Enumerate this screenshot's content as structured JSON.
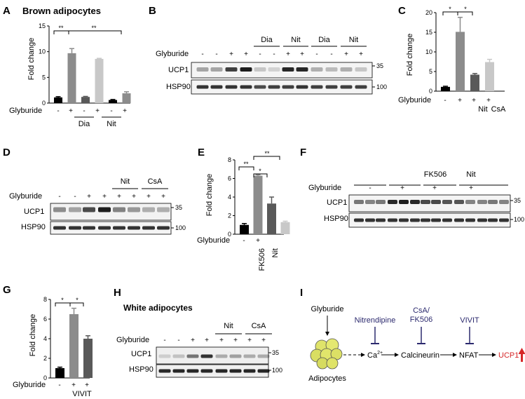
{
  "panels": {
    "A": {
      "letter": "A",
      "title": "Brown adipocytes",
      "ylabel": "Fold change",
      "yticks": [
        "0",
        "5",
        "10",
        "15"
      ],
      "row_label": "Glyburide",
      "signs": [
        "-",
        "+",
        "-",
        "+",
        "-",
        "+"
      ],
      "groups": [
        {
          "label": "Dia"
        },
        {
          "label": "Nit"
        }
      ],
      "sig": [
        "**",
        "**"
      ]
    },
    "B": {
      "letter": "B",
      "row_label": "Glyburide",
      "signs": [
        "-",
        "-",
        "+",
        "+",
        "-",
        "-",
        "+",
        "+",
        "-",
        "-",
        "+",
        "+"
      ],
      "groups": [
        "Dia",
        "Nit",
        "Dia",
        "Nit"
      ],
      "blots": [
        "UCP1",
        "HSP90"
      ],
      "mw": [
        "35",
        "100"
      ]
    },
    "C": {
      "letter": "C",
      "ylabel": "Fold change",
      "yticks": [
        "0",
        "5",
        "10",
        "15",
        "20"
      ],
      "row_label": "Glyburide",
      "signs": [
        "-",
        "+",
        "+",
        "+"
      ],
      "xlabels": [
        "Nit",
        "CsA"
      ],
      "sig": [
        "*",
        "*"
      ]
    },
    "D": {
      "letter": "D",
      "row_label": "Glyburide",
      "signs": [
        "-",
        "-",
        "+",
        "+",
        "+",
        "+",
        "+",
        "+"
      ],
      "groups": [
        "Nit",
        "CsA"
      ],
      "blots": [
        "UCP1",
        "HSP90"
      ],
      "mw": [
        "35",
        "100"
      ]
    },
    "E": {
      "letter": "E",
      "ylabel": "Fold change",
      "yticks": [
        "0",
        "2",
        "4",
        "6",
        "8"
      ],
      "row_label": "Glyburide",
      "signs": [
        "-",
        "+"
      ],
      "xlabels": [
        "FK506",
        "Nit"
      ],
      "sig": [
        "**",
        "*",
        "**"
      ]
    },
    "F": {
      "letter": "F",
      "row_label": "Glyburide",
      "signs": [
        "-",
        "+",
        "+",
        "+"
      ],
      "groups": [
        "FK506",
        "Nit"
      ],
      "blots": [
        "UCP1",
        "HSP90"
      ],
      "mw": [
        "35",
        "100"
      ]
    },
    "G": {
      "letter": "G",
      "ylabel": "Fold change",
      "yticks": [
        "0",
        "2",
        "4",
        "6",
        "8"
      ],
      "row_label": "Glyburide",
      "signs": [
        "-",
        "+",
        "+"
      ],
      "xlabels": [
        "VIVIT"
      ],
      "sig": [
        "*",
        "*"
      ]
    },
    "H": {
      "letter": "H",
      "title": "White adipocytes",
      "row_label": "Glyburide",
      "signs": [
        "-",
        "-",
        "+",
        "+",
        "+",
        "+",
        "+",
        "+"
      ],
      "groups": [
        "Nit",
        "CsA"
      ],
      "blots": [
        "UCP1",
        "HSP90"
      ],
      "mw": [
        "35",
        "100"
      ]
    },
    "I": {
      "letter": "I",
      "glyburide": "Glyburide",
      "adipocytes": "Adipocytes",
      "inhib1": "Nitrendipine",
      "inhib2a": "CsA/",
      "inhib2b": "FK506",
      "inhib3": "VIVIT",
      "ca": "Ca",
      "ca_sup": "2+",
      "calcineurin": "Calcineurin",
      "nfat": "NFAT",
      "ucp1": "UCP1",
      "colors": {
        "inhibitor": "#2c2a6e",
        "ucp1": "#d62728"
      }
    }
  },
  "chart_data": [
    {
      "panel": "A",
      "type": "bar",
      "categories": [
        "-",
        "+",
        "-",
        "+",
        "-",
        "+"
      ],
      "values": [
        1.1,
        9.7,
        1.2,
        8.6,
        0.6,
        1.9
      ],
      "errors": [
        0.15,
        0.9,
        0.1,
        0.1,
        0.1,
        0.3
      ],
      "colors": [
        "#000000",
        "#8c8c8c",
        "#595959",
        "#c8c8c8",
        "#000000",
        "#8c8c8c"
      ],
      "ylim": [
        0,
        15
      ]
    },
    {
      "panel": "C",
      "type": "bar",
      "categories": [
        "-",
        "+",
        "Nit",
        "CsA"
      ],
      "values": [
        1.1,
        15.1,
        4.2,
        7.4
      ],
      "errors": [
        0.15,
        3.7,
        0.3,
        0.7
      ],
      "colors": [
        "#000000",
        "#8c8c8c",
        "#595959",
        "#c8c8c8"
      ],
      "ylim": [
        0,
        20
      ]
    },
    {
      "panel": "E",
      "type": "bar",
      "categories": [
        "-",
        "+",
        "FK506",
        "Nit"
      ],
      "values": [
        1.0,
        6.3,
        3.3,
        1.3
      ],
      "errors": [
        0.15,
        0.1,
        0.7,
        0.1
      ],
      "colors": [
        "#000000",
        "#8c8c8c",
        "#595959",
        "#c8c8c8"
      ],
      "ylim": [
        0,
        8
      ]
    },
    {
      "panel": "G",
      "type": "bar",
      "categories": [
        "-",
        "+",
        "VIVIT"
      ],
      "values": [
        1.0,
        6.5,
        4.0
      ],
      "errors": [
        0.1,
        0.6,
        0.3
      ],
      "colors": [
        "#000000",
        "#8c8c8c",
        "#595959"
      ],
      "ylim": [
        0,
        8
      ]
    }
  ]
}
